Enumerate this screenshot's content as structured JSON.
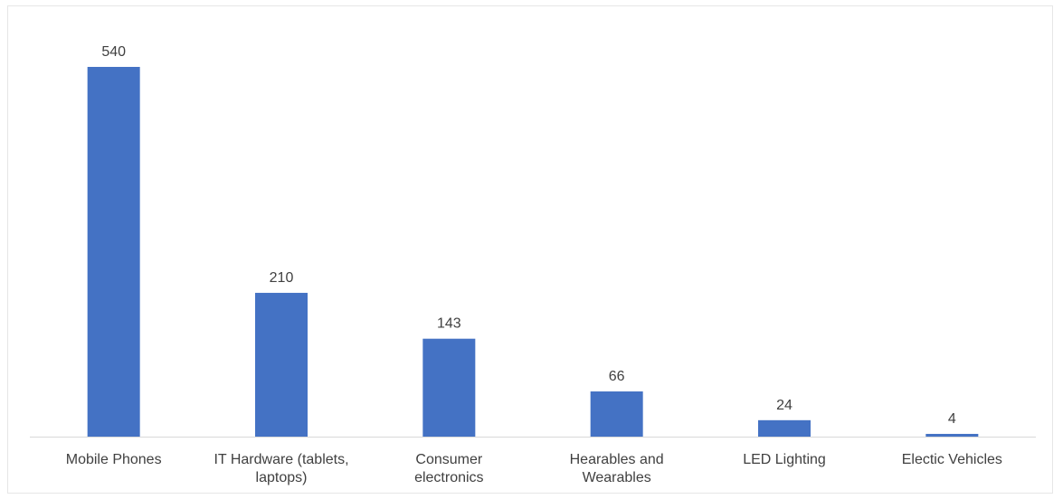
{
  "chart_data": {
    "type": "bar",
    "title": "",
    "xlabel": "",
    "ylabel": "",
    "categories": [
      "Mobile Phones",
      "IT Hardware (tablets, laptops)",
      "Consumer electronics",
      "Hearables and Wearables",
      "LED Lighting",
      "Electic Vehicles"
    ],
    "category_lines": [
      [
        "Mobile Phones"
      ],
      [
        "IT Hardware (tablets,",
        "laptops)"
      ],
      [
        "Consumer",
        "electronics"
      ],
      [
        "Hearables and",
        "Wearables"
      ],
      [
        "LED Lighting"
      ],
      [
        "Electic Vehicles"
      ]
    ],
    "values": [
      540,
      210,
      143,
      66,
      24,
      4
    ],
    "ylim": [
      0,
      540
    ],
    "grid": false,
    "legend": "none",
    "data_labels": true,
    "colors": {
      "bar": "#4472C4",
      "axis": "#d9d9d9",
      "text": "#404040",
      "border": "#e6e6e6"
    }
  }
}
